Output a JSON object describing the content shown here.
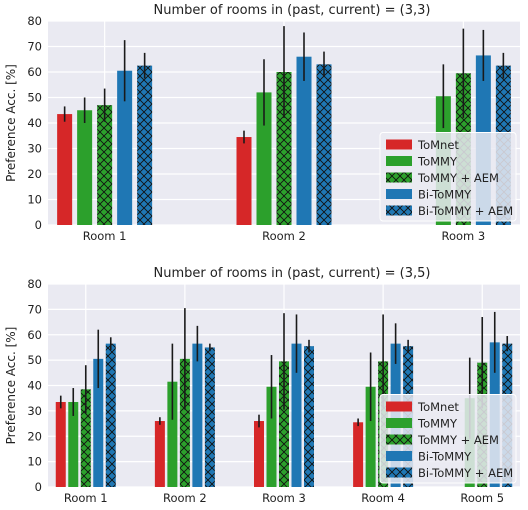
{
  "colors": {
    "plot_bg": "#EAEAF2",
    "grid": "#FFFFFF",
    "red": "#D62728",
    "green": "#2CA02C",
    "blue": "#1F77B4",
    "errorbar": "#1A1A1A"
  },
  "chart_data": [
    {
      "type": "bar",
      "title": "Number of rooms in (past, current) = (3,3)",
      "ylabel": "Preference Acc. [%]",
      "xlabel": "",
      "ylim": [
        0,
        80
      ],
      "yticks": [
        0,
        10,
        20,
        30,
        40,
        50,
        60,
        70,
        80
      ],
      "grid": true,
      "legend": "lower-right",
      "categories": [
        "Room 1",
        "Room 2",
        "Room 3"
      ],
      "series": [
        {
          "name": "ToMnet",
          "color": "red",
          "hatch": false,
          "values": [
            43.5,
            34.5,
            null
          ],
          "errors": [
            3,
            2.5,
            null
          ]
        },
        {
          "name": "ToMMY",
          "color": "green",
          "hatch": false,
          "values": [
            45,
            52,
            50.5
          ],
          "errors": [
            5,
            13,
            12.5
          ]
        },
        {
          "name": "ToMMY + AEM",
          "color": "green",
          "hatch": true,
          "values": [
            47,
            60,
            59.5
          ],
          "errors": [
            6.5,
            18,
            17.5
          ]
        },
        {
          "name": "Bi-ToMMY",
          "color": "blue",
          "hatch": false,
          "values": [
            60.5,
            66,
            66.5
          ],
          "errors": [
            12,
            9.5,
            10
          ]
        },
        {
          "name": "Bi-ToMMY + AEM",
          "color": "blue",
          "hatch": true,
          "values": [
            62.5,
            63,
            62.5
          ],
          "errors": [
            5,
            5,
            5
          ]
        }
      ]
    },
    {
      "type": "bar",
      "title": "Number of rooms in (past, current) = (3,5)",
      "ylabel": "Preference Acc. [%]",
      "xlabel": "",
      "ylim": [
        0,
        80
      ],
      "yticks": [
        0,
        10,
        20,
        30,
        40,
        50,
        60,
        70,
        80
      ],
      "grid": true,
      "legend": "lower-right",
      "categories": [
        "Room 1",
        "Room 2",
        "Room 3",
        "Room 4",
        "Room 5"
      ],
      "series": [
        {
          "name": "ToMnet",
          "color": "red",
          "hatch": false,
          "values": [
            33.5,
            26,
            26,
            25.5,
            null
          ],
          "errors": [
            2.5,
            1.5,
            2.5,
            1.5,
            null
          ]
        },
        {
          "name": "ToMMY",
          "color": "green",
          "hatch": false,
          "values": [
            33.5,
            41.5,
            39.5,
            39.5,
            35
          ],
          "errors": [
            5.5,
            15,
            12.5,
            13.5,
            16
          ]
        },
        {
          "name": "ToMMY + AEM",
          "color": "green",
          "hatch": true,
          "values": [
            38.5,
            50.5,
            49.5,
            49.5,
            49
          ],
          "errors": [
            9.5,
            20,
            19,
            18.5,
            18
          ]
        },
        {
          "name": "Bi-ToMMY",
          "color": "blue",
          "hatch": false,
          "values": [
            50.5,
            56.5,
            56.5,
            56.5,
            57
          ],
          "errors": [
            11.5,
            7,
            11.5,
            8,
            12
          ]
        },
        {
          "name": "Bi-ToMMY + AEM",
          "color": "blue",
          "hatch": true,
          "values": [
            56.5,
            55,
            55.5,
            55.5,
            56.5
          ],
          "errors": [
            2.5,
            1.5,
            2.5,
            2.5,
            3
          ]
        }
      ]
    }
  ]
}
